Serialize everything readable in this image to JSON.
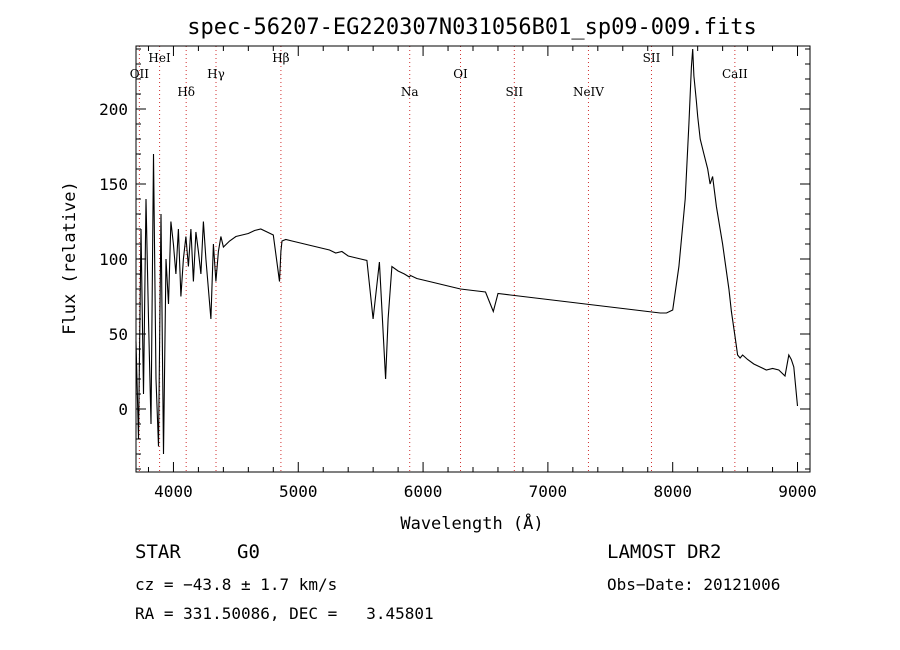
{
  "chart_data": {
    "type": "line",
    "title": "spec-56207-EG220307N031056B01_sp09-009.fits",
    "xlabel": "Wavelength (Å)",
    "ylabel": "Flux (relative)",
    "xlim": [
      3700,
      9100
    ],
    "ylim": [
      -42,
      242
    ],
    "xticks": [
      4000,
      5000,
      6000,
      7000,
      8000,
      9000
    ],
    "yticks": [
      0,
      50,
      100,
      150,
      200
    ],
    "grid": false,
    "series": [
      {
        "x": [
          3700,
          3720,
          3740,
          3760,
          3780,
          3800,
          3820,
          3840,
          3860,
          3880,
          3900,
          3920,
          3940,
          3960,
          3980,
          4000,
          4020,
          4040,
          4060,
          4080,
          4100,
          4120,
          4140,
          4160,
          4180,
          4200,
          4220,
          4240,
          4260,
          4280,
          4300,
          4320,
          4340,
          4360,
          4380,
          4400,
          4450,
          4500,
          4550,
          4600,
          4650,
          4700,
          4750,
          4800,
          4850,
          4861,
          4870,
          4900,
          4950,
          5000,
          5050,
          5100,
          5150,
          5200,
          5250,
          5300,
          5350,
          5400,
          5450,
          5500,
          5550,
          5600,
          5650,
          5700,
          5720,
          5750,
          5800,
          5850,
          5890,
          5900,
          5950,
          6000,
          6100,
          6200,
          6300,
          6400,
          6500,
          6563,
          6600,
          6700,
          6800,
          6900,
          7000,
          7100,
          7200,
          7300,
          7400,
          7500,
          7600,
          7700,
          7800,
          7900,
          7950,
          8000,
          8050,
          8100,
          8130,
          8150,
          8160,
          8170,
          8190,
          8200,
          8220,
          8250,
          8280,
          8300,
          8320,
          8350,
          8380,
          8400,
          8420,
          8450,
          8470,
          8500,
          8520,
          8540,
          8560,
          8600,
          8650,
          8700,
          8750,
          8800,
          8850,
          8900,
          8930,
          8950,
          8970,
          9000
        ],
        "y": [
          45,
          -20,
          120,
          10,
          140,
          60,
          -10,
          170,
          20,
          -25,
          130,
          -30,
          100,
          70,
          125,
          110,
          90,
          120,
          75,
          100,
          115,
          95,
          120,
          85,
          118,
          105,
          90,
          125,
          100,
          80,
          60,
          110,
          85,
          105,
          115,
          108,
          112,
          115,
          116,
          117,
          119,
          120,
          118,
          116,
          85,
          105,
          112,
          113,
          112,
          111,
          110,
          109,
          108,
          107,
          106,
          104,
          105,
          102,
          101,
          100,
          99,
          60,
          98,
          20,
          60,
          95,
          92,
          90,
          88,
          89,
          87,
          86,
          84,
          82,
          80,
          79,
          78,
          65,
          77,
          76,
          75,
          74,
          73,
          72,
          71,
          70,
          69,
          68,
          67,
          66,
          65,
          64,
          64,
          66,
          95,
          140,
          190,
          228,
          240,
          222,
          205,
          195,
          180,
          170,
          160,
          150,
          155,
          135,
          120,
          110,
          98,
          80,
          65,
          48,
          36,
          34,
          36,
          33,
          30,
          28,
          26,
          27,
          26,
          22,
          36,
          33,
          28,
          2
        ],
        "labels": []
      }
    ],
    "line_markers": [
      {
        "label": "OII",
        "x": 3727,
        "row": 3
      },
      {
        "label": "HeI",
        "x": 3889,
        "row": 1
      },
      {
        "label": "Hδ",
        "x": 4102,
        "row": 4
      },
      {
        "label": "Hγ",
        "x": 4341,
        "row": 3
      },
      {
        "label": "Hβ",
        "x": 4861,
        "row": 1
      },
      {
        "label": "Na",
        "x": 5893,
        "row": 4
      },
      {
        "label": "OI",
        "x": 6300,
        "row": 3
      },
      {
        "label": "SII",
        "x": 6731,
        "row": 4
      },
      {
        "label": "NeIV",
        "x": 7325,
        "row": 4
      },
      {
        "label": "SII",
        "x": 7830,
        "row": 1
      },
      {
        "label": "CaII",
        "x": 8498,
        "row": 3
      }
    ],
    "colors": {
      "axes": "#000000",
      "spectrum": "#000000",
      "marker_line": "#d03030"
    }
  },
  "info": {
    "object_type": "STAR",
    "subclass": "G0",
    "survey": "LAMOST DR2",
    "cz": "cz = −43.8 ± 1.7 km/s",
    "obs_date": "Obs−Date: 20121006",
    "radec": "RA = 331.50086, DEC =   3.45801"
  }
}
